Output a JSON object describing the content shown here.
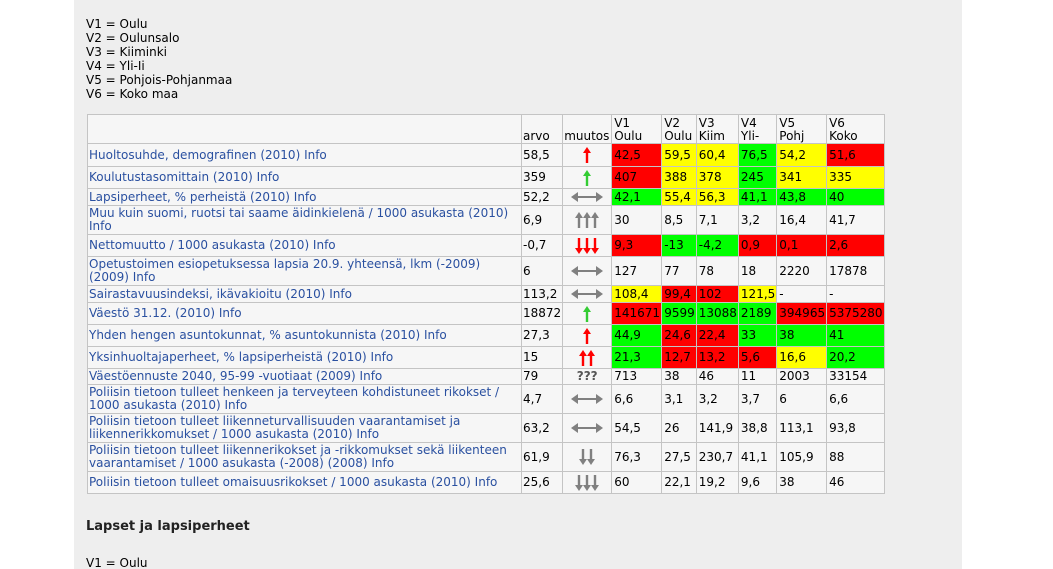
{
  "legend": [
    "V1 = Oulu",
    "V2 = Oulunsalo",
    "V3 = Kiiminki",
    "V4 = Yli-Ii",
    "V5 = Pohjois-Pohjanmaa",
    "V6 = Koko maa"
  ],
  "table": {
    "headers": {
      "arvo": "arvo",
      "muutos": "muutos",
      "areas": [
        {
          "code": "V1",
          "name": "Oulu"
        },
        {
          "code": "V2",
          "name": "Oulu"
        },
        {
          "code": "V3",
          "name": "Kiim"
        },
        {
          "code": "V4",
          "name": "Yli-"
        },
        {
          "code": "V5",
          "name": "Pohj"
        },
        {
          "code": "V6",
          "name": "Koko"
        }
      ]
    },
    "rows": [
      {
        "indicator": "Huoltosuhde, demografinen (2010) Info",
        "arvo": "58,5",
        "muutos": "up-red-1",
        "values": [
          "42,5",
          "59,5",
          "60,4",
          "76,5",
          "54,2",
          "51,6"
        ],
        "colors": [
          "red",
          "yellow",
          "yellow",
          "green",
          "yellow",
          "red"
        ]
      },
      {
        "indicator": "Koulutustasomittain (2010) Info",
        "arvo": "359",
        "muutos": "up-green-1",
        "values": [
          "407",
          "388",
          "378",
          "245",
          "341",
          "335"
        ],
        "colors": [
          "red",
          "yellow",
          "yellow",
          "green",
          "yellow",
          "yellow"
        ]
      },
      {
        "indicator": "Lapsiperheet, % perheistä (2010) Info",
        "arvo": "52,2",
        "muutos": "flat",
        "values": [
          "42,1",
          "55,4",
          "56,3",
          "41,1",
          "43,8",
          "40"
        ],
        "colors": [
          "green",
          "yellow",
          "yellow",
          "green",
          "green",
          "green"
        ]
      },
      {
        "indicator": "Muu kuin suomi, ruotsi tai saame äidinkielenä / 1000 asukasta (2010) Info",
        "arvo": "6,9",
        "muutos": "up-grey-3",
        "values": [
          "30",
          "8,5",
          "7,1",
          "3,2",
          "16,4",
          "41,7"
        ],
        "colors": [
          "",
          "",
          "",
          "",
          "",
          ""
        ]
      },
      {
        "indicator": "Nettomuutto / 1000 asukasta (2010) Info",
        "arvo": "-0,7",
        "muutos": "down-red-3",
        "values": [
          "9,3",
          "-13",
          "-4,2",
          "0,9",
          "0,1",
          "2,6"
        ],
        "colors": [
          "red",
          "green",
          "green",
          "red",
          "red",
          "red"
        ]
      },
      {
        "indicator": "Opetustoimen esiopetuksessa lapsia 20.9. yhteensä, lkm (-2009) (2009) Info",
        "arvo": "6",
        "muutos": "flat",
        "values": [
          "127",
          "77",
          "78",
          "18",
          "2220",
          "17878"
        ],
        "colors": [
          "",
          "",
          "",
          "",
          "",
          ""
        ]
      },
      {
        "indicator": "Sairastavuusindeksi, ikävakioitu (2010) Info",
        "arvo": "113,2",
        "muutos": "flat",
        "values": [
          "108,4",
          "99,4",
          "102",
          "121,5",
          "-",
          "-"
        ],
        "colors": [
          "yellow",
          "red",
          "red",
          "yellow",
          "",
          ""
        ]
      },
      {
        "indicator": "Väestö 31.12. (2010) Info",
        "arvo": "18872",
        "muutos": "up-green-1",
        "values": [
          "141671",
          "9599",
          "13088",
          "2189",
          "394965",
          "5375280"
        ],
        "colors": [
          "red",
          "green",
          "green",
          "green",
          "red",
          "red"
        ]
      },
      {
        "indicator": "Yhden hengen asuntokunnat, % asuntokunnista (2010) Info",
        "arvo": "27,3",
        "muutos": "up-red-1",
        "values": [
          "44,9",
          "24,6",
          "22,4",
          "33",
          "38",
          "41"
        ],
        "colors": [
          "green",
          "red",
          "red",
          "green",
          "green",
          "green"
        ]
      },
      {
        "indicator": "Yksinhuoltajaperheet, % lapsiperheistä (2010) Info",
        "arvo": "15",
        "muutos": "up-red-2",
        "values": [
          "21,3",
          "12,7",
          "13,2",
          "5,6",
          "16,6",
          "20,2"
        ],
        "colors": [
          "green",
          "red",
          "red",
          "red",
          "yellow",
          "green"
        ]
      },
      {
        "indicator": "Väestöennuste 2040, 95-99 -vuotiaat (2009) Info",
        "arvo": "79",
        "muutos": "???",
        "values": [
          "713",
          "38",
          "46",
          "11",
          "2003",
          "33154"
        ],
        "colors": [
          "",
          "",
          "",
          "",
          "",
          ""
        ]
      },
      {
        "indicator": "Poliisin tietoon tulleet henkeen ja terveyteen kohdistuneet rikokset / 1000 asukasta (2010) Info",
        "arvo": "4,7",
        "muutos": "flat",
        "values": [
          "6,6",
          "3,1",
          "3,2",
          "3,7",
          "6",
          "6,6"
        ],
        "colors": [
          "",
          "",
          "",
          "",
          "",
          ""
        ]
      },
      {
        "indicator": "Poliisin tietoon tulleet liikenneturvallisuuden vaarantamiset ja liikennerikkomukset / 1000 asukasta (2010) Info",
        "arvo": "63,2",
        "muutos": "flat",
        "values": [
          "54,5",
          "26",
          "141,9",
          "38,8",
          "113,1",
          "93,8"
        ],
        "colors": [
          "",
          "",
          "",
          "",
          "",
          ""
        ]
      },
      {
        "indicator": "Poliisin tietoon tulleet liikennerikokset ja -rikkomukset sekä liikenteen vaarantamiset / 1000 asukasta (-2008) (2008) Info",
        "arvo": "61,9",
        "muutos": "down-grey-2",
        "values": [
          "76,3",
          "27,5",
          "230,7",
          "41,1",
          "105,9",
          "88"
        ],
        "colors": [
          "",
          "",
          "",
          "",
          "",
          ""
        ]
      },
      {
        "indicator": "Poliisin tietoon tulleet omaisuusrikokset / 1000 asukasta (2010) Info",
        "arvo": "25,6",
        "muutos": "down-grey-3",
        "values": [
          "60",
          "22,1",
          "19,2",
          "9,6",
          "38",
          "46"
        ],
        "colors": [
          "",
          "",
          "",
          "",
          "",
          ""
        ]
      }
    ]
  },
  "section_title": "Lapset ja lapsiperheet",
  "legend2": [
    "V1 = Oulu"
  ],
  "icon_colors": {
    "red": "#ff0000",
    "green": "#33cc33",
    "grey": "#808080"
  }
}
